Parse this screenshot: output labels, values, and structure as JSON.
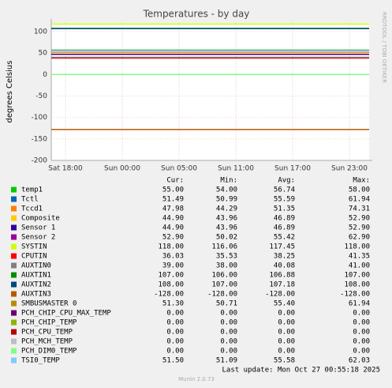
{
  "chart_data": {
    "type": "line",
    "title": "Temperatures - by day",
    "y_label": "degrees Celsius",
    "side_label": "RRDTOOL / TOBI OETIKER",
    "x_tick_labels": [
      "Sat 18:00",
      "Sun 00:00",
      "Sun 05:00",
      "Sun 11:00",
      "Sun 17:00",
      "Sun 23:00"
    ],
    "ylim": [
      -200,
      120
    ],
    "yticks": [
      -200,
      -150,
      -100,
      -50,
      0,
      50,
      100
    ],
    "grid": true,
    "columns": [
      "Cur:",
      "Min:",
      "Avg:",
      "Max:"
    ],
    "series": [
      {
        "name": "temp1",
        "color": "#00cc00",
        "values": [
          "55.00",
          "54.00",
          "56.74",
          "58.00"
        ]
      },
      {
        "name": "Tctl",
        "color": "#0066b3",
        "values": [
          "51.49",
          "50.99",
          "55.59",
          "61.94"
        ]
      },
      {
        "name": "Tccd1",
        "color": "#ff8000",
        "values": [
          "47.98",
          "44.29",
          "51.35",
          "74.31"
        ]
      },
      {
        "name": "Composite",
        "color": "#ffcc00",
        "values": [
          "44.90",
          "43.96",
          "46.89",
          "52.90"
        ]
      },
      {
        "name": "Sensor 1",
        "color": "#330099",
        "values": [
          "44.90",
          "43.96",
          "46.89",
          "52.90"
        ]
      },
      {
        "name": "Sensor 2",
        "color": "#990099",
        "values": [
          "52.90",
          "50.02",
          "55.42",
          "62.90"
        ]
      },
      {
        "name": "SYSTIN",
        "color": "#ccff00",
        "values": [
          "118.00",
          "116.06",
          "117.45",
          "118.00"
        ]
      },
      {
        "name": "CPUTIN",
        "color": "#ff0000",
        "values": [
          "36.03",
          "35.53",
          "38.25",
          "41.35"
        ]
      },
      {
        "name": "AUXTIN0",
        "color": "#808080",
        "values": [
          "39.00",
          "38.00",
          "40.08",
          "41.00"
        ]
      },
      {
        "name": "AUXTIN1",
        "color": "#008f00",
        "values": [
          "107.00",
          "106.00",
          "106.88",
          "107.00"
        ]
      },
      {
        "name": "AUXTIN2",
        "color": "#00487d",
        "values": [
          "108.00",
          "107.00",
          "107.18",
          "108.00"
        ]
      },
      {
        "name": "AUXTIN3",
        "color": "#b35a00",
        "values": [
          "-128.00",
          "-128.00",
          "-128.00",
          "-128.00"
        ]
      },
      {
        "name": "SMBUSMASTER 0",
        "color": "#b38f00",
        "values": [
          "51.30",
          "50.71",
          "55.40",
          "61.94"
        ]
      },
      {
        "name": "PCH_CHIP_CPU_MAX_TEMP",
        "color": "#6b006b",
        "values": [
          "0.00",
          "0.00",
          "0.00",
          "0.00"
        ]
      },
      {
        "name": "PCH_CHIP_TEMP",
        "color": "#8fb300",
        "values": [
          "0.00",
          "0.00",
          "0.00",
          "0.00"
        ]
      },
      {
        "name": "PCH_CPU_TEMP",
        "color": "#b30000",
        "values": [
          "0.00",
          "0.00",
          "0.00",
          "0.00"
        ]
      },
      {
        "name": "PCH_MCH_TEMP",
        "color": "#bebebe",
        "values": [
          "0.00",
          "0.00",
          "0.00",
          "0.00"
        ]
      },
      {
        "name": "PCH_DIM0_TEMP",
        "color": "#80ff80",
        "values": [
          "0.00",
          "0.00",
          "0.00",
          "0.00"
        ]
      },
      {
        "name": "TSI0_TEMP",
        "color": "#80c9ff",
        "values": [
          "51.50",
          "51.09",
          "55.58",
          "62.03"
        ]
      }
    ],
    "last_update": "Last update: Mon Oct 27 00:55:18 2025",
    "footer": "Munin 2.0.73"
  }
}
